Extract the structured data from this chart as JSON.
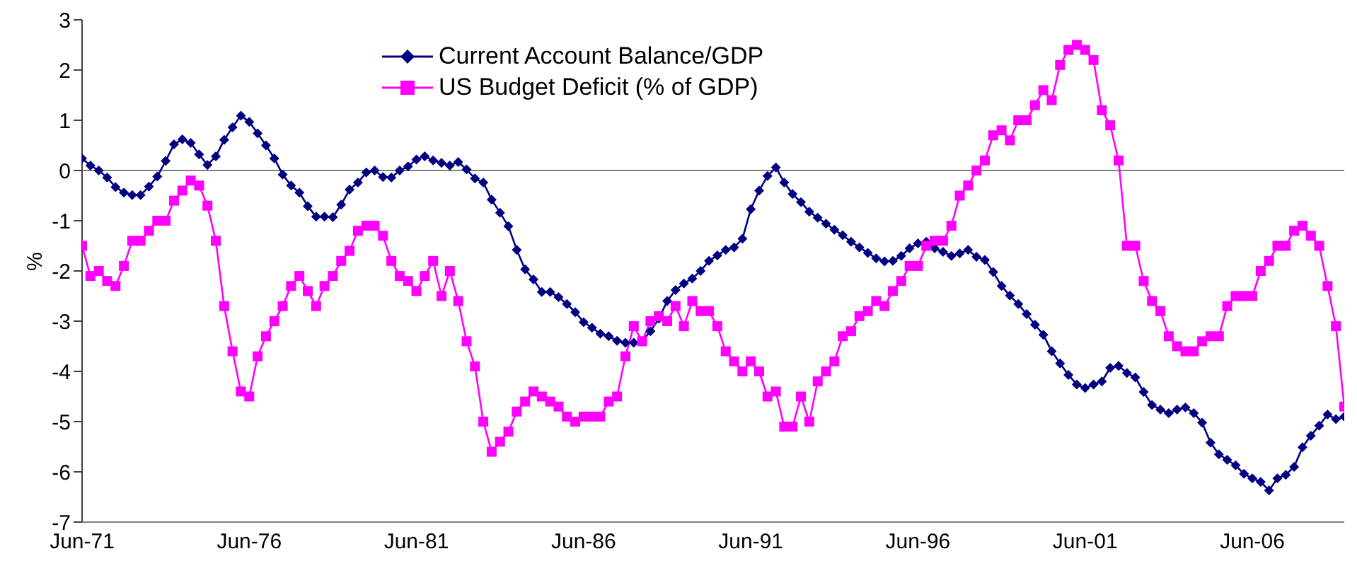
{
  "chart_data": {
    "type": "line",
    "ylabel": "%",
    "categories": [
      "Jun-71",
      null,
      null,
      null,
      null,
      null,
      null,
      null,
      null,
      null,
      null,
      null,
      null,
      null,
      null,
      null,
      null,
      null,
      null,
      null,
      "Jun-76",
      null,
      null,
      null,
      null,
      null,
      null,
      null,
      null,
      null,
      null,
      null,
      null,
      null,
      null,
      null,
      null,
      null,
      null,
      null,
      "Jun-81",
      null,
      null,
      null,
      null,
      null,
      null,
      null,
      null,
      null,
      null,
      null,
      null,
      null,
      null,
      null,
      null,
      null,
      null,
      null,
      "Jun-86",
      null,
      null,
      null,
      null,
      null,
      null,
      null,
      null,
      null,
      null,
      null,
      null,
      null,
      null,
      null,
      null,
      null,
      null,
      null,
      "Jun-91",
      null,
      null,
      null,
      null,
      null,
      null,
      null,
      null,
      null,
      null,
      null,
      null,
      null,
      null,
      null,
      null,
      null,
      null,
      null,
      "Jun-96",
      null,
      null,
      null,
      null,
      null,
      null,
      null,
      null,
      null,
      null,
      null,
      null,
      null,
      null,
      null,
      null,
      null,
      null,
      null,
      "Jun-01",
      null,
      null,
      null,
      null,
      null,
      null,
      null,
      null,
      null,
      null,
      null,
      null,
      null,
      null,
      null,
      null,
      null,
      null,
      null,
      "Jun-06",
      null,
      null,
      null,
      null,
      null,
      null,
      null,
      null,
      null,
      null,
      null
    ],
    "series": [
      {
        "name": "Current Account Balance/GDP",
        "color": "#000080",
        "marker": "diamond",
        "values": [
          0.24,
          0.1,
          0.0,
          -0.14,
          -0.33,
          -0.44,
          -0.49,
          -0.49,
          -0.32,
          -0.12,
          0.19,
          0.52,
          0.62,
          0.55,
          0.32,
          0.11,
          0.28,
          0.61,
          0.86,
          1.09,
          0.97,
          0.74,
          0.5,
          0.24,
          -0.08,
          -0.3,
          -0.44,
          -0.71,
          -0.92,
          -0.92,
          -0.93,
          -0.68,
          -0.38,
          -0.24,
          -0.04,
          0.0,
          -0.13,
          -0.14,
          0.0,
          0.08,
          0.22,
          0.28,
          0.2,
          0.15,
          0.1,
          0.17,
          0.02,
          -0.16,
          -0.24,
          -0.58,
          -0.84,
          -1.11,
          -1.58,
          -1.97,
          -2.17,
          -2.42,
          -2.42,
          -2.52,
          -2.66,
          -2.82,
          -3.02,
          -3.13,
          -3.25,
          -3.3,
          -3.39,
          -3.43,
          -3.43,
          -3.4,
          -3.2,
          -2.95,
          -2.6,
          -2.38,
          -2.25,
          -2.15,
          -2.0,
          -1.8,
          -1.69,
          -1.58,
          -1.53,
          -1.36,
          -0.77,
          -0.4,
          -0.11,
          0.06,
          -0.24,
          -0.47,
          -0.63,
          -0.82,
          -0.94,
          -1.06,
          -1.18,
          -1.29,
          -1.42,
          -1.53,
          -1.64,
          -1.75,
          -1.81,
          -1.8,
          -1.7,
          -1.55,
          -1.45,
          -1.42,
          -1.55,
          -1.62,
          -1.7,
          -1.65,
          -1.58,
          -1.72,
          -1.78,
          -2.02,
          -2.3,
          -2.49,
          -2.66,
          -2.86,
          -3.07,
          -3.27,
          -3.6,
          -3.84,
          -4.07,
          -4.26,
          -4.33,
          -4.26,
          -4.2,
          -3.93,
          -3.89,
          -4.03,
          -4.12,
          -4.41,
          -4.67,
          -4.76,
          -4.83,
          -4.76,
          -4.72,
          -4.83,
          -5.02,
          -5.42,
          -5.65,
          -5.76,
          -5.87,
          -6.04,
          -6.13,
          -6.2,
          -6.37,
          -6.13,
          -6.06,
          -5.9,
          -5.51,
          -5.28,
          -5.08,
          -4.86,
          -4.95,
          -4.9
        ]
      },
      {
        "name": "US Budget Deficit (% of GDP)",
        "color": "#ff00ff",
        "marker": "square",
        "values": [
          -1.5,
          -2.1,
          -2.0,
          -2.2,
          -2.3,
          -1.9,
          -1.4,
          -1.4,
          -1.2,
          -1.0,
          -1.0,
          -0.6,
          -0.4,
          -0.2,
          -0.3,
          -0.7,
          -1.4,
          -2.7,
          -3.6,
          -4.4,
          -4.5,
          -3.7,
          -3.3,
          -3.0,
          -2.7,
          -2.3,
          -2.1,
          -2.4,
          -2.7,
          -2.3,
          -2.1,
          -1.8,
          -1.6,
          -1.2,
          -1.1,
          -1.1,
          -1.3,
          -1.8,
          -2.1,
          -2.2,
          -2.4,
          -2.1,
          -1.8,
          -2.5,
          -2.0,
          -2.6,
          -3.4,
          -3.9,
          -5.0,
          -5.6,
          -5.4,
          -5.2,
          -4.8,
          -4.6,
          -4.4,
          -4.5,
          -4.6,
          -4.7,
          -4.9,
          -5.0,
          -4.9,
          -4.9,
          -4.9,
          -4.6,
          -4.5,
          -3.7,
          -3.1,
          -3.4,
          -3.0,
          -2.9,
          -3.0,
          -2.7,
          -3.1,
          -2.6,
          -2.8,
          -2.8,
          -3.1,
          -3.6,
          -3.8,
          -4.0,
          -3.8,
          -4.0,
          -4.5,
          -4.4,
          -5.1,
          -5.1,
          -4.5,
          -5.0,
          -4.2,
          -4.0,
          -3.8,
          -3.3,
          -3.2,
          -2.9,
          -2.8,
          -2.6,
          -2.7,
          -2.4,
          -2.2,
          -1.9,
          -1.9,
          -1.5,
          -1.4,
          -1.4,
          -1.1,
          -0.5,
          -0.3,
          0.0,
          0.2,
          0.7,
          0.8,
          0.6,
          1.0,
          1.0,
          1.3,
          1.6,
          1.4,
          2.1,
          2.4,
          2.5,
          2.4,
          2.2,
          1.2,
          0.9,
          0.2,
          -1.5,
          -1.5,
          -2.2,
          -2.6,
          -2.8,
          -3.3,
          -3.5,
          -3.6,
          -3.6,
          -3.4,
          -3.3,
          -3.3,
          -2.7,
          -2.5,
          -2.5,
          -2.5,
          -2.0,
          -1.8,
          -1.5,
          -1.5,
          -1.2,
          -1.1,
          -1.3,
          -1.5,
          -2.3,
          -3.1,
          -4.7
        ]
      }
    ],
    "ylim": [
      -7,
      3
    ],
    "yticks": [
      -7,
      -6,
      -5,
      -4,
      -3,
      -2,
      -1,
      0,
      1,
      2,
      3
    ],
    "ref_lines": [
      {
        "axis": "y",
        "value": 0,
        "color": "#808080"
      }
    ],
    "grid": false,
    "legend": "top"
  }
}
